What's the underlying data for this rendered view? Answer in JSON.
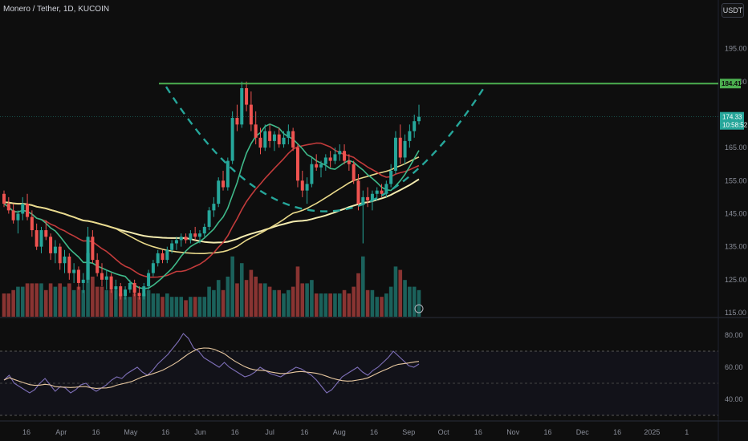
{
  "header": {
    "title": "Monero / Tether, 1D, KUCOIN",
    "currency": "USDT"
  },
  "colors": {
    "bg": "#0e0e0e",
    "up": "#26a69a",
    "down": "#ef5350",
    "resistance": "#4caf50",
    "arc": "#26a69a",
    "ma_fast": "#3fb98a",
    "ma_mid": "#c23b3b",
    "ma_slow": "#f5ecb0",
    "rsi": "#7e6fb8",
    "rsi_ma": "#e8c8a0"
  },
  "price_axis": {
    "ticks": [
      "195.00",
      "185.00",
      "165.00",
      "155.00",
      "145.00",
      "135.00",
      "125.00",
      "115.00"
    ]
  },
  "rsi_axis": {
    "ticks": [
      "80.00",
      "60.00",
      "40.00"
    ]
  },
  "time_axis": {
    "labels": [
      "16",
      "Apr",
      "16",
      "May",
      "16",
      "Jun",
      "16",
      "Jul",
      "16",
      "Aug",
      "16",
      "Sep",
      "Oct",
      "16",
      "Nov",
      "16",
      "Dec",
      "16",
      "2025",
      "1"
    ]
  },
  "badges": {
    "resistance": "184.41",
    "last_price": "174.33",
    "countdown": "10:58:52"
  },
  "chart_data": {
    "type": "candlestick",
    "symbol": "Monero / Tether",
    "interval": "1D",
    "exchange": "KUCOIN",
    "resistance_level": 184.41,
    "last_price": 174.33,
    "ylim": [
      115,
      200
    ],
    "candles": [
      [
        151,
        152,
        147,
        148
      ],
      [
        148,
        150,
        145,
        146
      ],
      [
        146,
        148,
        142,
        143
      ],
      [
        143,
        146,
        139,
        145
      ],
      [
        145,
        150,
        143,
        148
      ],
      [
        148,
        151,
        143,
        144
      ],
      [
        144,
        146,
        138,
        140
      ],
      [
        140,
        142,
        134,
        135
      ],
      [
        135,
        141,
        133,
        140
      ],
      [
        140,
        143,
        137,
        138
      ],
      [
        138,
        139,
        131,
        133
      ],
      [
        133,
        137,
        130,
        135
      ],
      [
        135,
        136,
        128,
        130
      ],
      [
        130,
        134,
        127,
        132
      ],
      [
        132,
        133,
        125,
        127
      ],
      [
        127,
        130,
        124,
        128
      ],
      [
        128,
        129,
        122,
        124
      ],
      [
        124,
        127,
        121,
        125
      ],
      [
        125,
        141,
        124,
        138
      ],
      [
        138,
        140,
        130,
        131
      ],
      [
        131,
        133,
        126,
        127
      ],
      [
        127,
        130,
        123,
        125
      ],
      [
        125,
        128,
        122,
        126
      ],
      [
        126,
        127,
        121,
        122
      ],
      [
        122,
        125,
        119,
        123
      ],
      [
        123,
        124,
        119,
        120
      ],
      [
        120,
        123,
        119,
        122
      ],
      [
        122,
        125,
        121,
        124
      ],
      [
        124,
        125,
        120,
        121
      ],
      [
        121,
        123,
        119,
        120
      ],
      [
        120,
        124,
        119,
        123
      ],
      [
        123,
        128,
        122,
        127
      ],
      [
        127,
        131,
        126,
        130
      ],
      [
        130,
        134,
        129,
        133
      ],
      [
        133,
        134,
        130,
        131
      ],
      [
        131,
        135,
        130,
        134
      ],
      [
        134,
        137,
        133,
        136
      ],
      [
        136,
        138,
        134,
        137
      ],
      [
        137,
        139,
        135,
        138
      ],
      [
        138,
        139,
        136,
        137
      ],
      [
        137,
        140,
        136,
        139
      ],
      [
        139,
        141,
        137,
        138
      ],
      [
        138,
        140,
        136,
        139
      ],
      [
        139,
        142,
        138,
        141
      ],
      [
        141,
        147,
        140,
        146
      ],
      [
        146,
        150,
        144,
        148
      ],
      [
        148,
        156,
        147,
        155
      ],
      [
        155,
        158,
        152,
        153
      ],
      [
        153,
        162,
        152,
        161
      ],
      [
        161,
        176,
        160,
        174
      ],
      [
        174,
        178,
        170,
        172
      ],
      [
        172,
        185,
        171,
        183
      ],
      [
        183,
        185,
        176,
        178
      ],
      [
        178,
        182,
        170,
        172
      ],
      [
        172,
        176,
        166,
        168
      ],
      [
        168,
        171,
        163,
        165
      ],
      [
        165,
        172,
        164,
        170
      ],
      [
        170,
        172,
        165,
        167
      ],
      [
        167,
        170,
        164,
        169
      ],
      [
        169,
        171,
        165,
        166
      ],
      [
        166,
        170,
        165,
        168
      ],
      [
        168,
        172,
        166,
        170
      ],
      [
        170,
        171,
        164,
        165
      ],
      [
        165,
        166,
        153,
        155
      ],
      [
        155,
        158,
        150,
        152
      ],
      [
        152,
        156,
        148,
        154
      ],
      [
        154,
        162,
        153,
        160
      ],
      [
        160,
        163,
        158,
        159
      ],
      [
        159,
        161,
        156,
        160
      ],
      [
        160,
        163,
        158,
        162
      ],
      [
        162,
        164,
        159,
        161
      ],
      [
        161,
        165,
        160,
        163
      ],
      [
        163,
        166,
        161,
        164
      ],
      [
        164,
        166,
        160,
        161
      ],
      [
        161,
        163,
        158,
        160
      ],
      [
        160,
        161,
        154,
        155
      ],
      [
        155,
        157,
        146,
        148
      ],
      [
        148,
        152,
        136,
        150
      ],
      [
        150,
        153,
        147,
        149
      ],
      [
        149,
        152,
        146,
        151
      ],
      [
        151,
        153,
        149,
        152
      ],
      [
        152,
        154,
        150,
        151
      ],
      [
        151,
        155,
        150,
        154
      ],
      [
        154,
        160,
        153,
        158
      ],
      [
        158,
        170,
        157,
        168
      ],
      [
        168,
        172,
        160,
        162
      ],
      [
        162,
        169,
        160,
        167
      ],
      [
        167,
        172,
        165,
        170
      ],
      [
        170,
        175,
        168,
        173
      ],
      [
        173,
        178,
        172,
        174.33
      ]
    ],
    "rsi": [
      52,
      55,
      50,
      48,
      46,
      44,
      46,
      50,
      53,
      49,
      45,
      48,
      47,
      44,
      46,
      49,
      50,
      47,
      45,
      47,
      49,
      52,
      54,
      53,
      56,
      58,
      60,
      57,
      55,
      58,
      62,
      65,
      68,
      72,
      76,
      81,
      78,
      72,
      70,
      66,
      64,
      62,
      60,
      63,
      60,
      58,
      56,
      54,
      55,
      57,
      60,
      58,
      56,
      55,
      54,
      56,
      58,
      60,
      59,
      57,
      55,
      52,
      48,
      44,
      46,
      50,
      54,
      56,
      58,
      60,
      57,
      55,
      58,
      60,
      63,
      66,
      70,
      67,
      64,
      61,
      60,
      62
    ]
  }
}
